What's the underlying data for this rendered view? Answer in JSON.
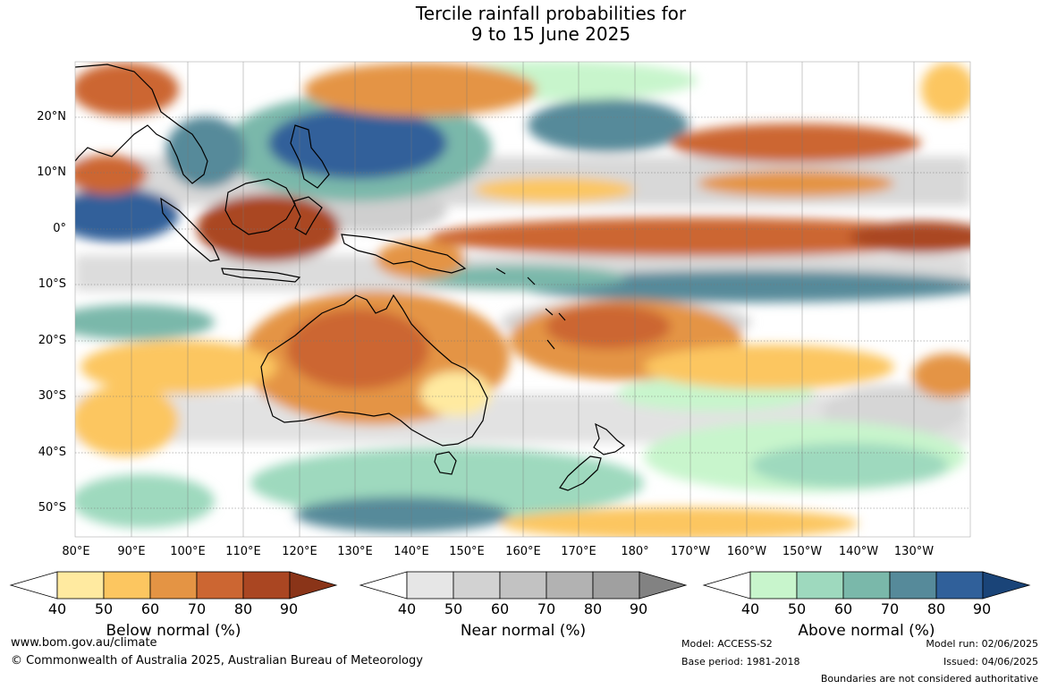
{
  "title": {
    "line1": "Tercile rainfall probabilities for",
    "line2": "9 to 15 June 2025"
  },
  "lat_labels": [
    "20°N",
    "10°N",
    "0°",
    "10°S",
    "20°S",
    "30°S",
    "40°S",
    "50°S"
  ],
  "lon_labels": [
    "80°E",
    "90°E",
    "100°E",
    "110°E",
    "120°E",
    "130°E",
    "140°E",
    "150°E",
    "160°E",
    "170°E",
    "180°",
    "170°W",
    "160°W",
    "150°W",
    "140°W",
    "130°W"
  ],
  "legends": [
    {
      "title": "Below normal (%)",
      "ticks": [
        "40",
        "50",
        "60",
        "70",
        "80",
        "90"
      ],
      "colors": [
        "#ffffff",
        "#ffeaa0",
        "#fcc660",
        "#e49444",
        "#cc6632",
        "#aa4622",
        "#8a3418"
      ]
    },
    {
      "title": "Near normal (%)",
      "ticks": [
        "40",
        "50",
        "60",
        "70",
        "80",
        "90"
      ],
      "colors": [
        "#ffffff",
        "#e6e6e6",
        "#d2d2d2",
        "#c2c2c2",
        "#b2b2b2",
        "#a0a0a0",
        "#828282"
      ]
    },
    {
      "title": "Above normal (%)",
      "ticks": [
        "40",
        "50",
        "60",
        "70",
        "80",
        "90"
      ],
      "colors": [
        "#ffffff",
        "#c8f5cc",
        "#9ed9be",
        "#7ab8aa",
        "#568a9a",
        "#30609a",
        "#1a4478"
      ]
    }
  ],
  "footer": {
    "website": "www.bom.gov.au/climate",
    "copyright": "© Commonwealth of Australia 2025, Australian Bureau of Meteorology",
    "model": "Model: ACCESS-S2",
    "base_period": "Base period: 1981-2018",
    "model_run": "Model run: 02/06/2025",
    "issued": "Issued: 04/06/2025",
    "disclaimer": "Boundaries are not considered authoritative"
  }
}
